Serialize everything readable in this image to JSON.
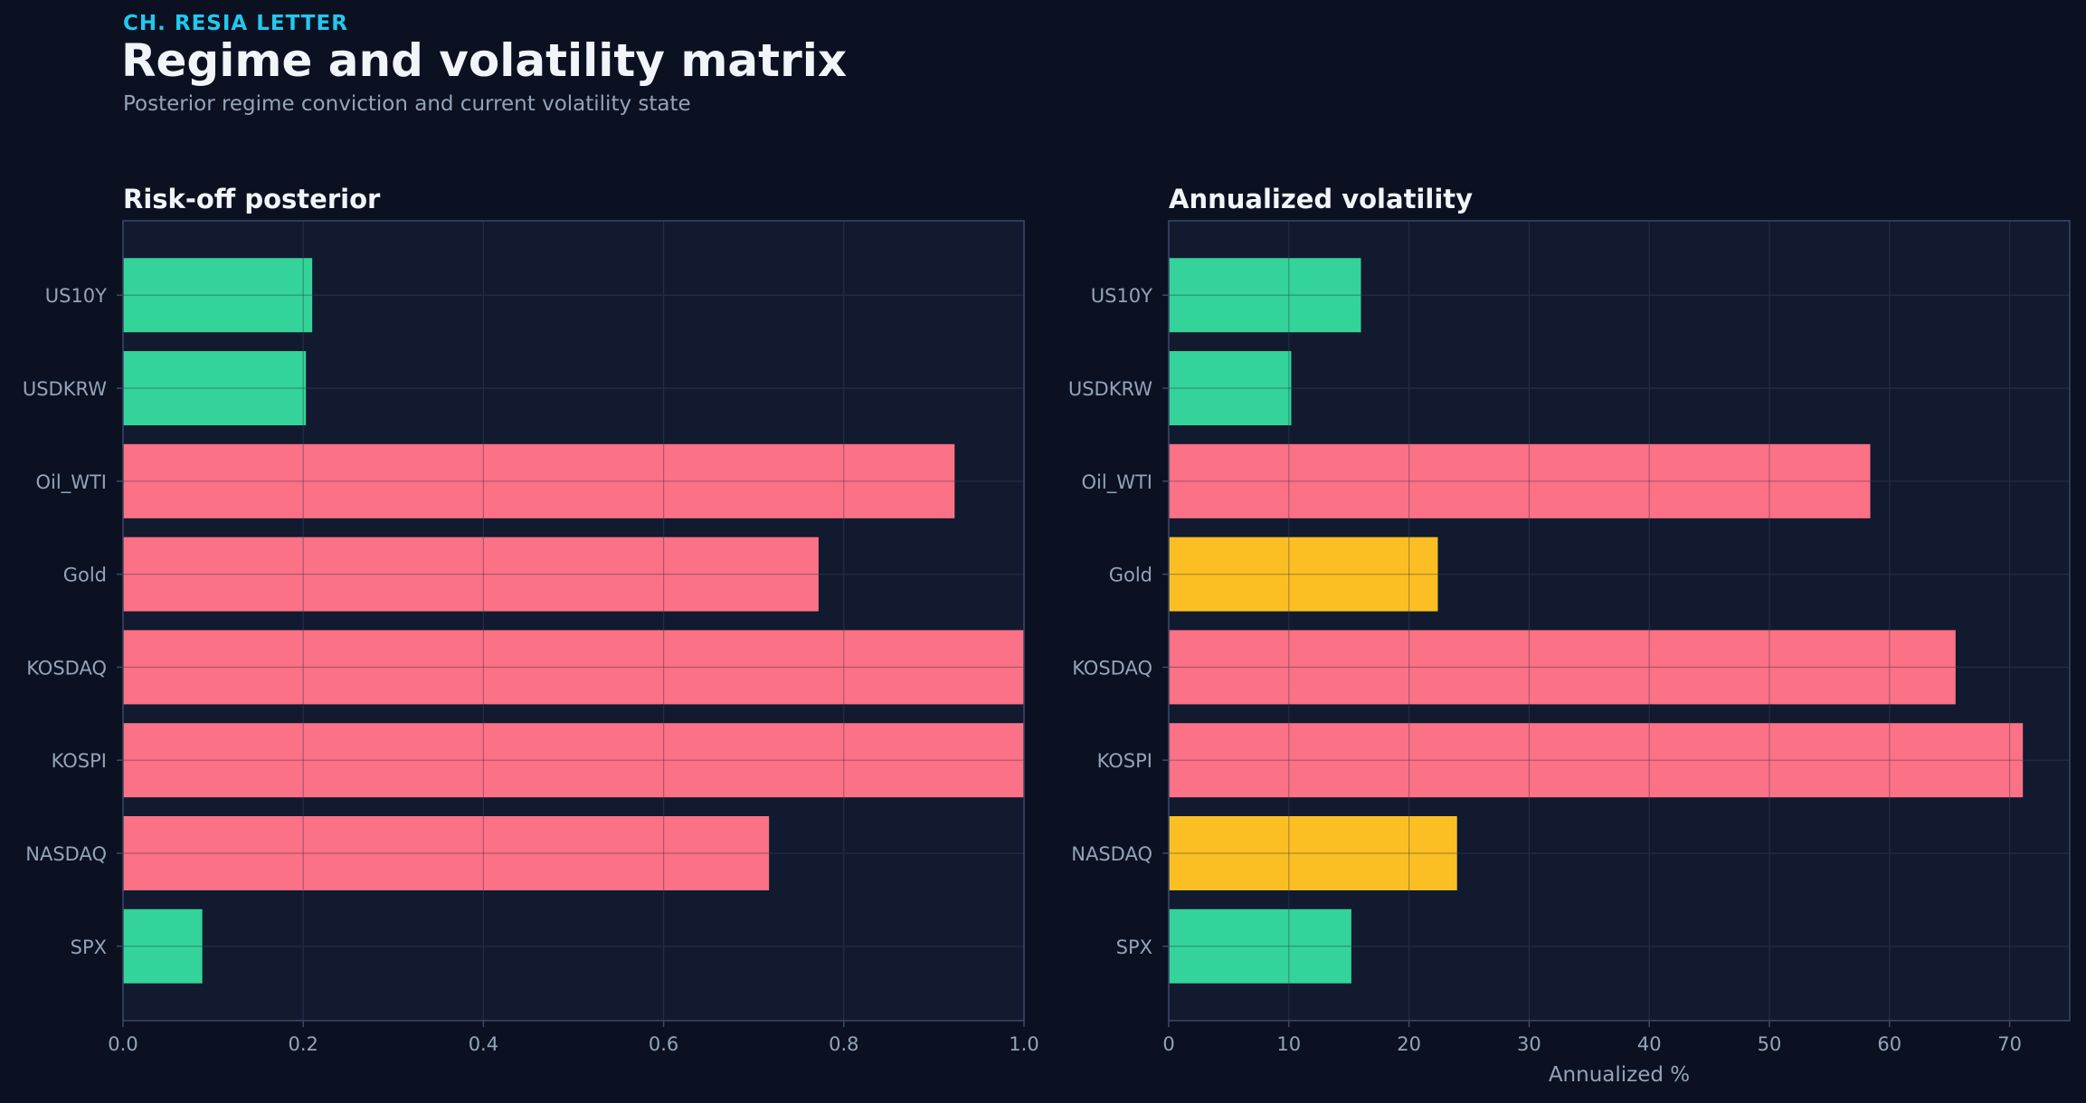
{
  "header": {
    "brand": "CH. RESIA LETTER",
    "title": "Regime and volatility matrix",
    "subtitle": "Posterior regime conviction and current volatility state"
  },
  "colors": {
    "background": "#0b1121",
    "panel": "#111a2e",
    "grid": "#25304a",
    "axis": "#3a4868",
    "text_muted": "#94a3b8",
    "green": "#34d399",
    "red": "#fb7185",
    "amber": "#fbbf24"
  },
  "chart_data": [
    {
      "type": "bar",
      "orientation": "horizontal",
      "title": "Risk-off posterior",
      "xlabel": "",
      "ylabel": "",
      "categories": [
        "US10Y",
        "USDKRW",
        "Oil_WTI",
        "Gold",
        "KOSDAQ",
        "KOSPI",
        "NASDAQ",
        "SPX"
      ],
      "values": [
        0.21,
        0.203,
        0.923,
        0.772,
        1.0,
        1.0,
        0.717,
        0.088
      ],
      "bar_colors": [
        "green",
        "green",
        "red",
        "red",
        "red",
        "red",
        "red",
        "green"
      ],
      "xlim": [
        0,
        1.0
      ],
      "xticks": [
        "0.0",
        "0.2",
        "0.4",
        "0.6",
        "0.8",
        "1.0"
      ],
      "grid": true
    },
    {
      "type": "bar",
      "orientation": "horizontal",
      "title": "Annualized volatility",
      "xlabel": "Annualized %",
      "ylabel": "",
      "categories": [
        "US10Y",
        "USDKRW",
        "Oil_WTI",
        "Gold",
        "KOSDAQ",
        "KOSPI",
        "NASDAQ",
        "SPX"
      ],
      "values": [
        16.0,
        10.2,
        58.4,
        22.4,
        65.5,
        71.1,
        24.0,
        15.2
      ],
      "bar_colors": [
        "green",
        "green",
        "red",
        "amber",
        "red",
        "red",
        "amber",
        "green"
      ],
      "xlim": [
        0,
        75
      ],
      "xticks": [
        "0",
        "10",
        "20",
        "30",
        "40",
        "50",
        "60",
        "70"
      ],
      "grid": true
    }
  ]
}
